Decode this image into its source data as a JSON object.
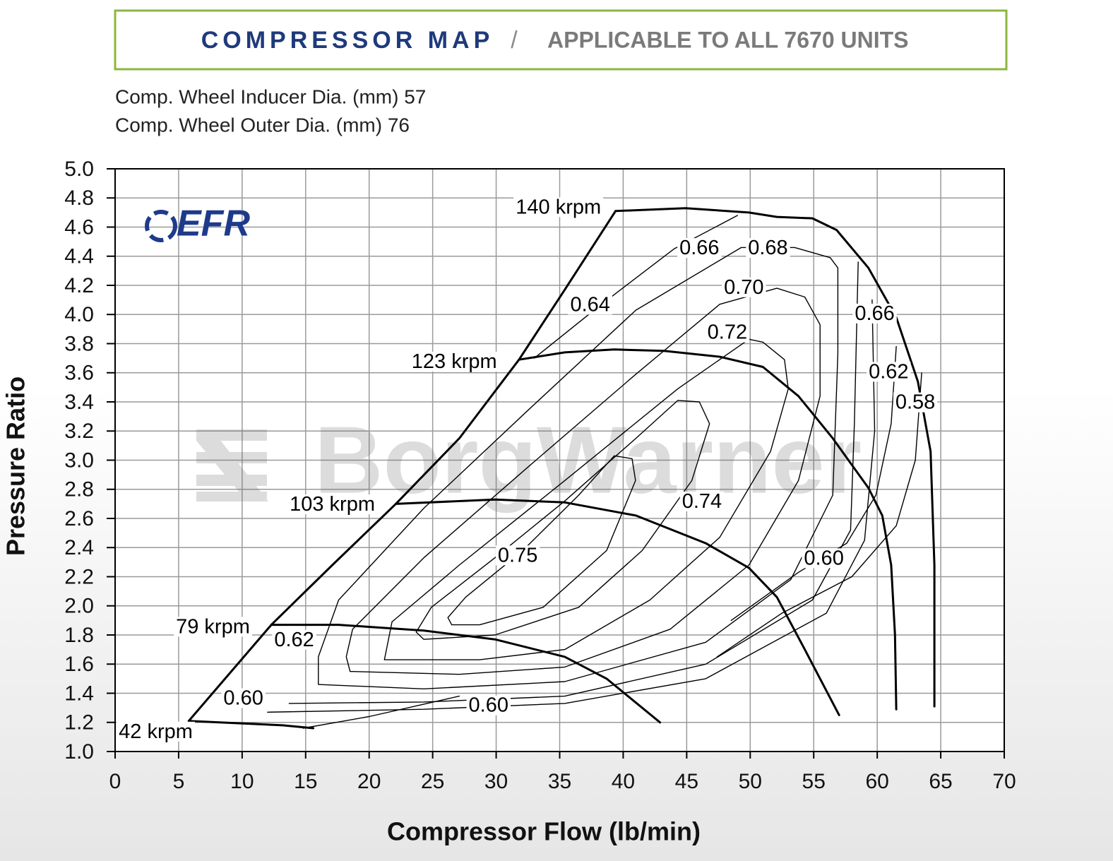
{
  "header": {
    "title": "COMPRESSOR MAP",
    "separator": "/",
    "subtitle": "APPLICABLE TO ALL 7670 UNITS"
  },
  "specs": [
    "Comp. Wheel Inducer Dia. (mm) 57",
    "Comp. Wheel Outer Dia. (mm) 76"
  ],
  "logo": "EFR",
  "watermark": "BorgWarner",
  "chart_data": {
    "type": "line",
    "x_label": "Compressor Flow (lb/min)",
    "y_label": "Pressure Ratio",
    "xlim": [
      0,
      70
    ],
    "ylim": [
      1,
      5
    ],
    "xticks": [
      0,
      5,
      10,
      15,
      20,
      25,
      30,
      35,
      40,
      45,
      50,
      55,
      60,
      65,
      70
    ],
    "yticks": [
      {
        "value": 1,
        "label": "1.0"
      },
      1.2,
      1.4,
      1.6,
      1.8,
      {
        "value": 2,
        "label": "2.0"
      },
      2.2,
      2.4,
      2.6,
      2.8,
      {
        "value": 3,
        "label": "3.0"
      },
      3.2,
      3.4,
      3.6,
      3.8,
      {
        "value": 4,
        "label": "4.0"
      },
      4.2,
      4.4,
      4.6,
      4.8,
      {
        "value": 5,
        "label": "5.0"
      }
    ],
    "grid": true,
    "series": [
      {
        "color": "#000000",
        "line_width": 3,
        "x": [
          5.8,
          12.3,
          17.1,
          22.1,
          27.1,
          31.8,
          35.4,
          39.4
        ],
        "y": [
          1.21,
          1.87,
          2.28,
          2.7,
          3.15,
          3.69,
          4.17,
          4.71
        ]
      },
      {
        "color": "#000000",
        "line_width": 3,
        "x": [
          5.8,
          13.2,
          15.6
        ],
        "y": [
          1.21,
          1.18,
          1.16
        ]
      },
      {
        "color": "#000000",
        "line_width": 3,
        "x": [
          12.3,
          17.6,
          24.3,
          29.9,
          35.4,
          38.7,
          42.9
        ],
        "y": [
          1.87,
          1.87,
          1.83,
          1.77,
          1.65,
          1.5,
          1.2
        ]
      },
      {
        "color": "#000000",
        "line_width": 3,
        "x": [
          22.1,
          29.9,
          35.4,
          41.0,
          46.5,
          49.9,
          52.1,
          54.3,
          57.0
        ],
        "y": [
          2.7,
          2.73,
          2.71,
          2.62,
          2.43,
          2.26,
          2.06,
          1.7,
          1.25
        ]
      },
      {
        "color": "#000000",
        "line_width": 3,
        "x": [
          31.8,
          35.4,
          39.3,
          43.2,
          47.6,
          51.0,
          53.8,
          56.5,
          59.3,
          60.4,
          61.1,
          61.4,
          61.5
        ],
        "y": [
          3.69,
          3.74,
          3.76,
          3.75,
          3.71,
          3.64,
          3.44,
          3.15,
          2.81,
          2.62,
          2.28,
          1.8,
          1.29
        ]
      },
      {
        "color": "#000000",
        "line_width": 3,
        "x": [
          39.4,
          44.9,
          49.9,
          52.1,
          54.9,
          56.8,
          59.3,
          61.5,
          63.2,
          64.2,
          64.5,
          64.5
        ],
        "y": [
          4.71,
          4.73,
          4.7,
          4.67,
          4.66,
          4.58,
          4.32,
          3.98,
          3.54,
          3.06,
          2.28,
          1.31
        ]
      },
      {
        "color": "#000000",
        "line_width": 1.4,
        "x": [
          26.5,
          28.7,
          33.7,
          38.7,
          40.97,
          40.7,
          39.3,
          36.5,
          32.1,
          27.6,
          26.2,
          26.5
        ],
        "y": [
          1.87,
          1.87,
          1.99,
          2.38,
          2.86,
          3.01,
          3.03,
          2.76,
          2.38,
          2.06,
          1.92,
          1.87
        ]
      },
      {
        "color": "#000000",
        "line_width": 1.4,
        "x": [
          24.3,
          29.9,
          36.5,
          41.5,
          45.4,
          46.8,
          46.0,
          44.3,
          41.0,
          35.4,
          29.9,
          24.9,
          23.7,
          24.3
        ],
        "y": [
          1.77,
          1.8,
          1.99,
          2.38,
          2.86,
          3.25,
          3.4,
          3.41,
          3.15,
          2.72,
          2.33,
          1.99,
          1.82,
          1.77
        ]
      },
      {
        "color": "#000000",
        "line_width": 1.4,
        "x": [
          21.2,
          28.7,
          35.4,
          42.1,
          47.6,
          51.6,
          53.0,
          52.7,
          51.0,
          49.9,
          44.3,
          35.4,
          27.1,
          21.8,
          21.2
        ],
        "y": [
          1.63,
          1.63,
          1.7,
          2.04,
          2.47,
          3.06,
          3.49,
          3.69,
          3.81,
          3.83,
          3.49,
          2.86,
          2.28,
          1.89,
          1.63
        ]
      },
      {
        "color": "#000000",
        "line_width": 1.4,
        "x": [
          18.5,
          27.1,
          35.4,
          43.7,
          49.9,
          53.8,
          55.5,
          55.5,
          54.3,
          52.1,
          47.6,
          41.0,
          32.6,
          24.3,
          18.7,
          18.2,
          18.5
        ],
        "y": [
          1.55,
          1.53,
          1.58,
          1.84,
          2.28,
          2.86,
          3.44,
          3.93,
          4.12,
          4.18,
          4.07,
          3.59,
          2.96,
          2.33,
          1.84,
          1.65,
          1.55
        ]
      },
      {
        "color": "#000000",
        "line_width": 1.4,
        "x": [
          16.0,
          24.3,
          35.4,
          46.5,
          53.2,
          56.5,
          56.9,
          56.9,
          56.3,
          53.5,
          49.3,
          41.0,
          32.6,
          24.3,
          17.6,
          16.0,
          16.0
        ],
        "y": [
          1.46,
          1.43,
          1.48,
          1.75,
          2.18,
          2.76,
          3.73,
          4.32,
          4.39,
          4.46,
          4.46,
          4.03,
          3.35,
          2.67,
          2.04,
          1.65,
          1.46
        ]
      },
      {
        "color": "#000000",
        "line_width": 1.4,
        "x": [
          13.7,
          24.3,
          35.4,
          46.5,
          54.9,
          57.9,
          58.2,
          58.5,
          null,
          49.0,
          44.0,
          38.0,
          33.0
        ],
        "y": [
          1.33,
          1.34,
          1.38,
          1.6,
          2.04,
          2.52,
          3.25,
          4.36,
          null,
          4.68,
          4.45,
          4.05,
          3.7
        ]
      },
      {
        "color": "#000000",
        "line_width": 1.4,
        "x": [
          12.0,
          24.3,
          35.4,
          46.5,
          56.0,
          59.0,
          59.8,
          59.6
        ],
        "y": [
          1.27,
          1.29,
          1.33,
          1.5,
          1.95,
          2.45,
          3.2,
          4.1
        ]
      },
      {
        "color": "#000000",
        "line_width": 1.4,
        "x": [
          48.5,
          53.8,
          57.6,
          59.9,
          61.1,
          61.5
        ],
        "y": [
          1.9,
          2.23,
          2.43,
          2.76,
          3.25,
          3.78
        ]
      },
      {
        "color": "#000000",
        "line_width": 1.4,
        "x": [
          47.4,
          52.5,
          58.0,
          61.5,
          63.0
        ],
        "y": [
          1.65,
          1.95,
          2.2,
          2.55,
          3.0
        ]
      },
      {
        "color": "#000000",
        "line_width": 1.4,
        "x": [
          63.0,
          63.5
        ],
        "y": [
          3.0,
          3.6
        ]
      },
      {
        "color": "#000000",
        "line_width": 1.4,
        "x": [
          14.8,
          20.0,
          27.1
        ],
        "y": [
          1.16,
          1.24,
          1.38
        ]
      }
    ],
    "annotations": [
      {
        "text": "140 krpm",
        "x": 34.9,
        "y": 4.73
      },
      {
        "text": "123 krpm",
        "x": 26.7,
        "y": 3.67
      },
      {
        "text": "103 krpm",
        "x": 17.1,
        "y": 2.69
      },
      {
        "text": "79 krpm",
        "x": 7.7,
        "y": 1.85
      },
      {
        "text": "42 krpm",
        "x": 3.2,
        "y": 1.13
      },
      {
        "text": "0.66",
        "x": 46.0,
        "y": 4.45
      },
      {
        "text": "0.68",
        "x": 51.4,
        "y": 4.45
      },
      {
        "text": "0.64",
        "x": 37.4,
        "y": 4.06
      },
      {
        "text": "0.70",
        "x": 49.5,
        "y": 4.18
      },
      {
        "text": "0.72",
        "x": 48.2,
        "y": 3.87
      },
      {
        "text": "0.66",
        "x": 59.8,
        "y": 4.0
      },
      {
        "text": "0.62",
        "x": 60.9,
        "y": 3.6
      },
      {
        "text": "0.58",
        "x": 63.0,
        "y": 3.39
      },
      {
        "text": "0.74",
        "x": 46.2,
        "y": 2.71
      },
      {
        "text": "0.75",
        "x": 31.7,
        "y": 2.34
      },
      {
        "text": "0.60",
        "x": 55.8,
        "y": 2.32
      },
      {
        "text": "0.62",
        "x": 14.1,
        "y": 1.76
      },
      {
        "text": "0.60",
        "x": 10.1,
        "y": 1.36
      },
      {
        "text": "0.60",
        "x": 29.4,
        "y": 1.31
      }
    ]
  }
}
